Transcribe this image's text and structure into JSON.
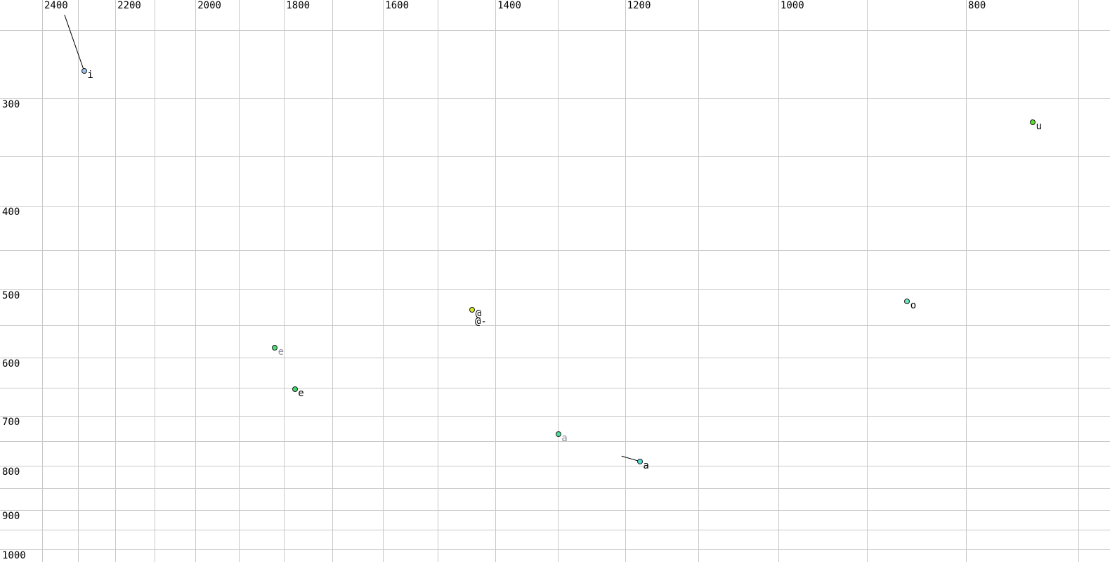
{
  "chart_data": {
    "type": "scatter",
    "title": "",
    "xlabel": "",
    "ylabel": "",
    "grid": true,
    "legend_position": "none",
    "x_axis": {
      "unit": "Hz",
      "scale": "log",
      "direction": "values decrease to the right",
      "gridline_values": [
        2400,
        2300,
        2200,
        2100,
        2000,
        1900,
        1800,
        1700,
        1600,
        1500,
        1400,
        1300,
        1200,
        1100,
        1000,
        900,
        800,
        700
      ],
      "labeled_values": [
        2400,
        2200,
        2000,
        1800,
        1600,
        1400,
        1200,
        1000,
        800
      ],
      "tick_labels": [
        "2400",
        "2200",
        "2000",
        "1800",
        "1600",
        "1400",
        "1200",
        "1000",
        "800"
      ],
      "visible_range": [
        2525,
        675
      ]
    },
    "y_axis": {
      "unit": "Hz",
      "scale": "log",
      "direction": "values increase downward",
      "gridline_values": [
        250,
        300,
        350,
        400,
        450,
        500,
        550,
        600,
        650,
        700,
        750,
        800,
        850,
        900,
        950,
        1000
      ],
      "labeled_values": [
        300,
        400,
        500,
        600,
        700,
        800,
        900,
        1000
      ],
      "tick_labels": [
        "300",
        "400",
        "500",
        "600",
        "700",
        "800",
        "900",
        "1000"
      ],
      "visible_range": [
        230,
        1035
      ]
    },
    "points": [
      {
        "label": "i",
        "f2": 2283,
        "f1": 279,
        "marker_color": "#9cc3ef",
        "label_color": "#000000",
        "marker_visible": true,
        "tail": {
          "f2": 2337,
          "f1": 240
        }
      },
      {
        "label": "e",
        "f2": 1820,
        "f1": 584,
        "marker_color": "#4edc78",
        "label_color": "#8d8d9d",
        "marker_visible": true
      },
      {
        "label": "e",
        "f2": 1777,
        "f1": 652,
        "marker_color": "#3fd96b",
        "label_color": "#000000",
        "marker_visible": true
      },
      {
        "label": "@",
        "f2": 1439,
        "f1": 528,
        "marker_color": "#d8e626",
        "label_color": "#000000",
        "marker_visible": true
      },
      {
        "label": "@-",
        "f2": 1440,
        "f1": 539,
        "marker_color": "#d8e626",
        "label_color": "#000000",
        "marker_visible": false
      },
      {
        "label": "a",
        "f2": 1299,
        "f1": 735,
        "marker_color": "#4ae19c",
        "label_color": "#8d8d9d",
        "marker_visible": true
      },
      {
        "label": "a",
        "f2": 1179,
        "f1": 791,
        "marker_color": "#52dbd8",
        "label_color": "#000000",
        "marker_visible": true,
        "tail": {
          "f2": 1205,
          "f1": 780
        }
      },
      {
        "label": "o",
        "f2": 858,
        "f1": 516,
        "marker_color": "#6fe6c2",
        "label_color": "#000000",
        "marker_visible": true
      },
      {
        "label": "u",
        "f2": 739,
        "f1": 320,
        "marker_color": "#5cdf2e",
        "label_color": "#000000",
        "marker_visible": true
      }
    ]
  },
  "colors": {
    "background": "#ffffff",
    "gridline": "#c8c8c8",
    "tick_text": "#000000",
    "muted_label": "#8d8d9d",
    "marker_outline": "#1b1b1b",
    "tail_line": "#000000"
  }
}
